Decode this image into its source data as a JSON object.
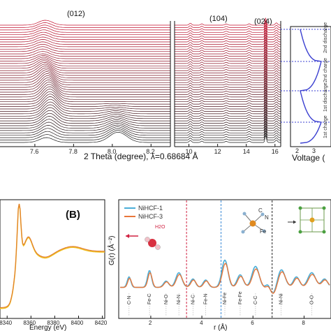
{
  "chart_data": [
    {
      "type": "line",
      "panel": "waterfall-left",
      "xlabel": "2 Theta (degree), λ=0.68684 Å",
      "x_ticks": [
        "7.6",
        "7.8",
        "8.0",
        "8.2"
      ],
      "xlim": [
        7.42,
        8.3
      ],
      "annotations": [
        "(012)"
      ],
      "n_curves": 50,
      "color_gradient": [
        "#1a1a1a",
        "#c4102e"
      ]
    },
    {
      "type": "line",
      "panel": "waterfall-middle",
      "x_ticks": [
        "10",
        "12",
        "14",
        "16"
      ],
      "xlim": [
        9.0,
        16.4
      ],
      "annotations": [
        "(104)",
        "(024)"
      ]
    },
    {
      "type": "line",
      "panel": "voltage-profile",
      "xlabel": "Voltage (",
      "x_ticks": [
        "2",
        "3"
      ],
      "cycle_labels": [
        "1st charge",
        "1st discharge",
        "2nd charge",
        "2nd discharge"
      ],
      "color": "#3a3fd0"
    },
    {
      "type": "line",
      "panel": "B-xanes",
      "panel_label": "(B)",
      "xlabel": "Energy (eV)",
      "x_ticks": [
        "8340",
        "8360",
        "8380",
        "8400",
        "8420"
      ],
      "xlim": [
        8334,
        8422
      ],
      "series_colors": [
        "#f0c020",
        "#e07a30"
      ]
    },
    {
      "type": "line",
      "panel": "C-pdf",
      "xlabel": "r (Å)",
      "ylabel": "G(r) (Å⁻²)",
      "x_ticks": [
        "2",
        "4",
        "6",
        "8"
      ],
      "xlim": [
        0.8,
        9.0
      ],
      "series": [
        {
          "name": "NiHCF-1",
          "color": "#4aaed8"
        },
        {
          "name": "NiHCF-3",
          "color": "#e8773a"
        }
      ],
      "molecule_label": "H2O",
      "structure_labels": [
        "C",
        "N",
        "Fe"
      ],
      "bond_labels": [
        "C-N",
        "Fe-C",
        "Ni-O",
        "Ni-N",
        "Ni-C",
        "Fe-N",
        "Ni-Fe",
        "Fe-Fe",
        "C-C",
        "Ni-Ni",
        "O-O"
      ]
    }
  ]
}
